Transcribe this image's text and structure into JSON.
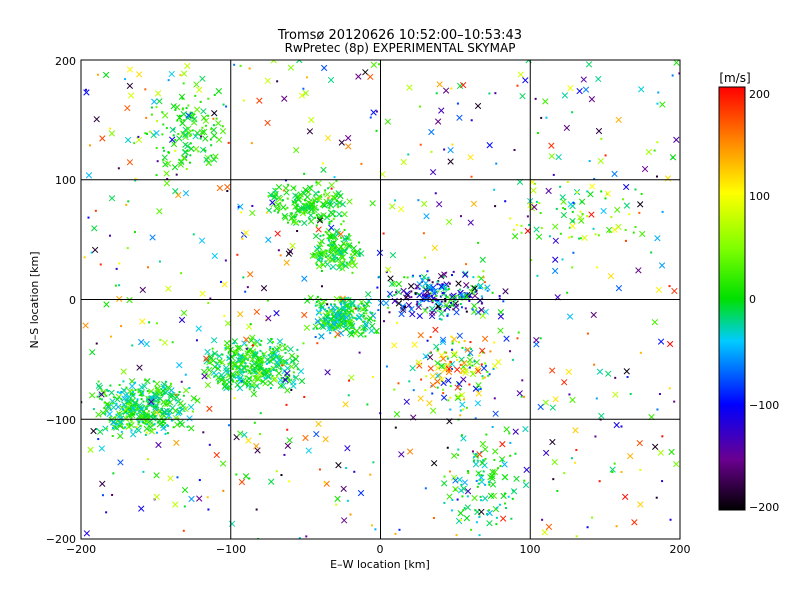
{
  "chart_data": {
    "type": "scatter",
    "title": "Tromsø 20120626 10:52:00–10:53:43",
    "subtitle": "RwPretec (8p) EXPERIMENTAL SKYMAP",
    "xlabel": "E–W location [km]",
    "ylabel": "N–S location [km]",
    "xlim": [
      -200,
      200
    ],
    "ylim": [
      -200,
      200
    ],
    "xticks": [
      "−200",
      "−100",
      "0",
      "100",
      "200"
    ],
    "yticks": [
      "−200",
      "−100",
      "0",
      "100",
      "200"
    ],
    "grid": true,
    "colorbar": {
      "label": "[m/s]",
      "range": [
        -200,
        200
      ],
      "ticks": [
        "200",
        "100",
        "0",
        "−100",
        "−200"
      ]
    },
    "clusters": [
      {
        "x": [
          -195,
          -120
        ],
        "y": [
          -115,
          -65
        ],
        "v": [
          -50,
          40
        ],
        "count": 380
      },
      {
        "x": [
          -120,
          -50
        ],
        "y": [
          -80,
          -30
        ],
        "v": [
          -40,
          40
        ],
        "count": 340
      },
      {
        "x": [
          -50,
          0
        ],
        "y": [
          -35,
          5
        ],
        "v": [
          -60,
          40
        ],
        "count": 240
      },
      {
        "x": [
          -80,
          -20
        ],
        "y": [
          60,
          100
        ],
        "v": [
          -20,
          40
        ],
        "count": 180
      },
      {
        "x": [
          -50,
          -10
        ],
        "y": [
          20,
          60
        ],
        "v": [
          -30,
          40
        ],
        "count": 150
      },
      {
        "x": [
          -160,
          -100
        ],
        "y": [
          100,
          180
        ],
        "v": [
          -20,
          40
        ],
        "count": 120
      },
      {
        "x": [
          -5,
          90
        ],
        "y": [
          -20,
          25
        ],
        "v": [
          -200,
          40
        ],
        "count": 230
      },
      {
        "x": [
          20,
          80
        ],
        "y": [
          -100,
          -20
        ],
        "v": [
          -100,
          200
        ],
        "count": 130
      },
      {
        "x": [
          40,
          100
        ],
        "y": [
          -200,
          -100
        ],
        "v": [
          -50,
          30
        ],
        "count": 110
      },
      {
        "x": [
          80,
          180
        ],
        "y": [
          40,
          100
        ],
        "v": [
          -40,
          100
        ],
        "count": 70
      },
      {
        "x": [
          -200,
          200
        ],
        "y": [
          -200,
          200
        ],
        "v": [
          -200,
          200
        ],
        "count": 650
      }
    ]
  }
}
